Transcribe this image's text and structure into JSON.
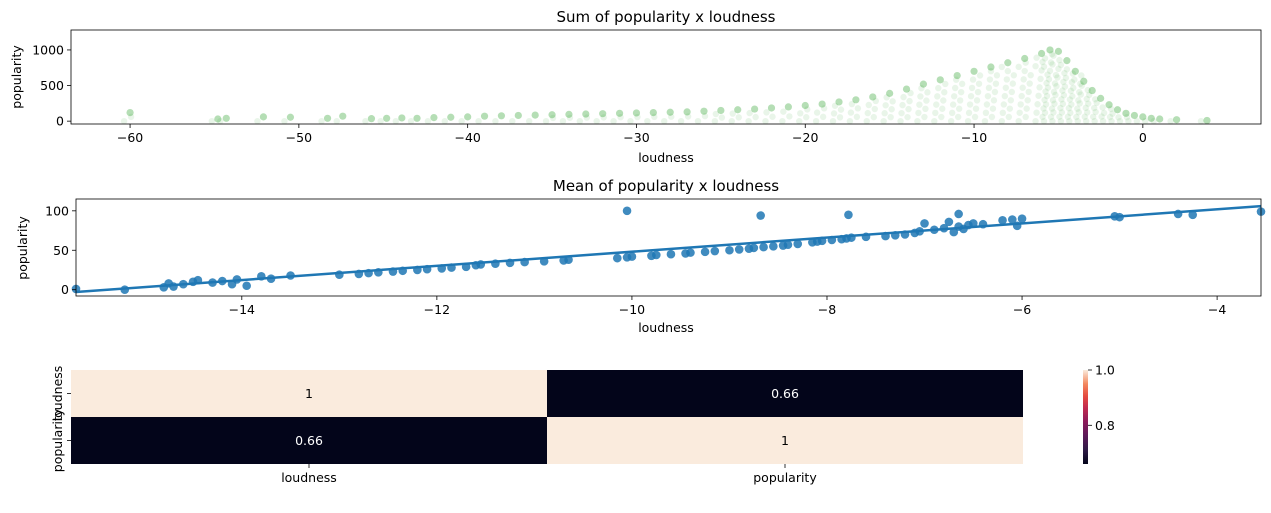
{
  "chart_data": [
    {
      "type": "scatter",
      "title": "Sum of popularity x loudness",
      "xlabel": "loudness",
      "ylabel": "popularity",
      "xlim": [
        -63.5,
        7
      ],
      "ylim": [
        -40,
        1280
      ],
      "xticks": [
        -60,
        -50,
        -40,
        -30,
        -20,
        -10,
        0
      ],
      "xtick_labels": [
        "−60",
        "−50",
        "−40",
        "−30",
        "−20",
        "−10",
        "0"
      ],
      "yticks": [
        0,
        500,
        1000
      ],
      "ytick_labels": [
        "0",
        "500",
        "1000"
      ],
      "marker_color": "#2ca02c",
      "marker_alpha": 0.1,
      "grid": false,
      "x": [
        -60.0,
        -54.8,
        -54.3,
        -52.1,
        -50.5,
        -48.3,
        -47.4,
        -45.7,
        -44.8,
        -43.9,
        -43.0,
        -42.0,
        -41.0,
        -40.0,
        -39.0,
        -38.0,
        -37.0,
        -36.0,
        -35.0,
        -34.0,
        -33.0,
        -32.0,
        -31.0,
        -30.0,
        -29.0,
        -28.0,
        -27.0,
        -26.0,
        -25.0,
        -24.0,
        -23.0,
        -22.0,
        -21.0,
        -20.0,
        -19.0,
        -18.0,
        -17.0,
        -16.0,
        -15.0,
        -14.0,
        -13.0,
        -12.0,
        -11.0,
        -10.0,
        -9.0,
        -8.0,
        -7.0,
        -6.0,
        -5.5,
        -5.0,
        -4.5,
        -4.0,
        -3.5,
        -3.0,
        -2.5,
        -2.0,
        -1.5,
        -1.0,
        -0.5,
        0.0,
        0.5,
        1.0,
        2.0,
        3.8
      ],
      "y": [
        120,
        30,
        40,
        60,
        55,
        40,
        70,
        35,
        40,
        45,
        40,
        50,
        55,
        60,
        70,
        75,
        80,
        85,
        90,
        95,
        100,
        105,
        110,
        115,
        120,
        125,
        130,
        140,
        150,
        160,
        170,
        185,
        200,
        220,
        240,
        270,
        300,
        340,
        390,
        450,
        520,
        580,
        640,
        700,
        760,
        820,
        880,
        950,
        1000,
        980,
        850,
        700,
        560,
        430,
        320,
        230,
        160,
        110,
        80,
        60,
        40,
        30,
        20,
        10
      ]
    },
    {
      "type": "scatter",
      "title": "Mean of popularity x loudness",
      "xlabel": "loudness",
      "ylabel": "popularity",
      "xlim": [
        -15.7,
        -3.55
      ],
      "ylim": [
        -8,
        115
      ],
      "xticks": [
        -14,
        -12,
        -10,
        -8,
        -6,
        -4
      ],
      "xtick_labels": [
        "−14",
        "−12",
        "−10",
        "−8",
        "−6",
        "−4"
      ],
      "yticks": [
        0,
        50,
        100
      ],
      "ytick_labels": [
        "0",
        "50",
        "100"
      ],
      "marker_color": "#1f77b4",
      "fit_line": {
        "x": [
          -15.7,
          -3.55
        ],
        "y": [
          -3,
          106
        ]
      },
      "grid": false,
      "x": [
        -15.7,
        -15.2,
        -14.8,
        -14.75,
        -14.7,
        -14.6,
        -14.5,
        -14.45,
        -14.3,
        -14.2,
        -14.1,
        -14.05,
        -13.95,
        -13.8,
        -13.7,
        -13.5,
        -13.0,
        -12.8,
        -12.7,
        -12.6,
        -12.45,
        -12.35,
        -12.2,
        -12.1,
        -11.95,
        -11.85,
        -11.7,
        -11.6,
        -11.55,
        -11.4,
        -11.25,
        -11.1,
        -10.9,
        -10.7,
        -10.65,
        -10.15,
        -10.05,
        -10.0,
        -9.8,
        -9.75,
        -9.6,
        -9.45,
        -9.4,
        -9.25,
        -9.15,
        -9.0,
        -8.9,
        -8.8,
        -8.75,
        -8.65,
        -8.55,
        -8.45,
        -8.4,
        -8.3,
        -8.15,
        -8.1,
        -8.05,
        -7.95,
        -7.85,
        -7.8,
        -7.75,
        -7.6,
        -7.4,
        -7.3,
        -7.2,
        -7.1,
        -7.05,
        -7.0,
        -6.9,
        -6.8,
        -6.75,
        -6.7,
        -6.65,
        -6.6,
        -6.55,
        -6.5,
        -6.4,
        -6.2,
        -6.1,
        -6.05,
        -6.0,
        -5.05,
        -5.0,
        -4.4,
        -4.25,
        -10.05,
        -8.68,
        -7.78,
        -6.65,
        -3.55
      ],
      "y": [
        1,
        0,
        3,
        8,
        4,
        7,
        10,
        12,
        9,
        11,
        7,
        13,
        5,
        17,
        14,
        18,
        19,
        20,
        21,
        22,
        23,
        24,
        25,
        26,
        27,
        28,
        29,
        31,
        32,
        33,
        34,
        35,
        36,
        37,
        38,
        40,
        41,
        42,
        43,
        44,
        45,
        46,
        47,
        48,
        49,
        50,
        51,
        52,
        53,
        54,
        55,
        56,
        57,
        58,
        60,
        61,
        62,
        63,
        64,
        65,
        66,
        67,
        68,
        69,
        70,
        72,
        74,
        84,
        76,
        78,
        86,
        73,
        80,
        77,
        82,
        84,
        83,
        88,
        89,
        81,
        90,
        93,
        92,
        96,
        95,
        100,
        94,
        95,
        96,
        99
      ]
    },
    {
      "type": "heatmap",
      "categories": [
        "loudness",
        "popularity"
      ],
      "values": [
        [
          1,
          0.66
        ],
        [
          0.66,
          1
        ]
      ],
      "cell_labels": [
        [
          "1",
          "0.66"
        ],
        [
          "0.66",
          "1"
        ]
      ],
      "colorbar": {
        "min": 0.66,
        "max": 1.0,
        "ticks": [
          1.0,
          0.8
        ],
        "tick_labels": [
          "1.0",
          "0.8"
        ]
      }
    }
  ]
}
